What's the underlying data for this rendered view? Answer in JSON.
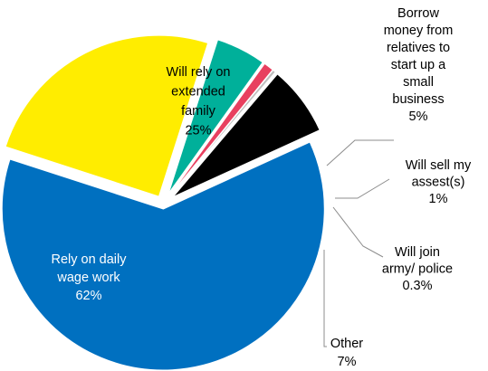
{
  "chart_data": {
    "type": "pie",
    "title": "",
    "slices": [
      {
        "label": "Will rely on extended family",
        "value": 25,
        "value_label": "25%",
        "color": "#FFED00",
        "label_lines": [
          "Will rely on",
          "extended",
          "family",
          "25%"
        ]
      },
      {
        "label": "Borrow money from relatives to start up a small business",
        "value": 5,
        "value_label": "5%",
        "color": "#00B09A",
        "label_lines": [
          "Borrow",
          "money from",
          "relatives to",
          "start up a",
          "small",
          "business",
          "5%"
        ]
      },
      {
        "label": "Will sell my assest(s)",
        "value": 1,
        "value_label": "1%",
        "color": "#E8405F",
        "label_lines": [
          "Will sell my",
          "assest(s)",
          "1%"
        ]
      },
      {
        "label": "Will join army/ police",
        "value": 0.3,
        "value_label": "0.3%",
        "color": "#BFBFBF",
        "label_lines": [
          "Will join",
          "army/ police",
          "0.3%"
        ]
      },
      {
        "label": "Other",
        "value": 7,
        "value_label": "7%",
        "color": "#000000",
        "label_lines": [
          "Other",
          "7%"
        ]
      },
      {
        "label": "Rely on daily wage work",
        "value": 62,
        "value_label": "62%",
        "color": "#0070C0",
        "label_lines": [
          "Rely on daily",
          "wage work",
          "62%"
        ]
      }
    ],
    "exploded": true,
    "legend": "none"
  }
}
